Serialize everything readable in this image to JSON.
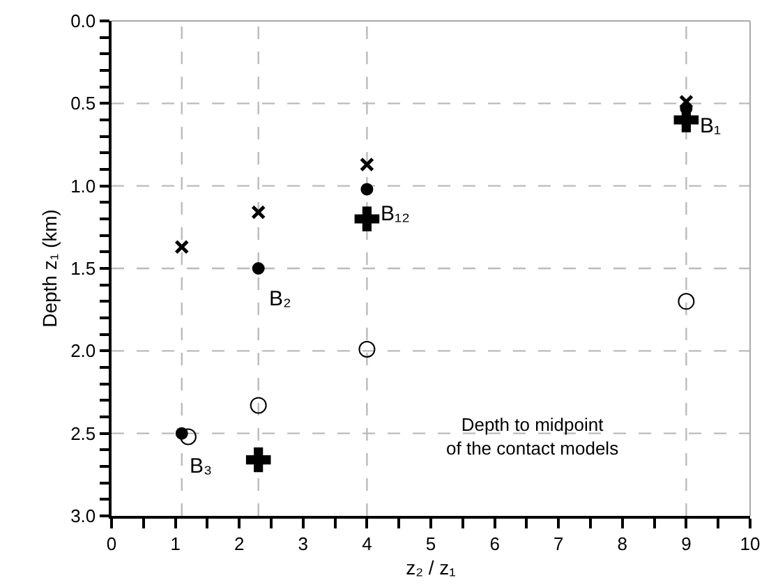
{
  "chart_data": {
    "type": "scatter",
    "xlabel": "z₂ / z₁",
    "ylabel": "Depth z₁ (km)",
    "xlim": [
      0,
      10
    ],
    "ylim": [
      3.0,
      0.0
    ],
    "xticks": [
      0,
      {
        "value": 0.5,
        "label": null
      },
      1,
      {
        "value": 1.5,
        "label": null
      },
      2,
      {
        "value": 2.5,
        "label": null
      },
      3,
      {
        "value": 3.5,
        "label": null
      },
      4,
      {
        "value": 4.5,
        "label": null
      },
      5,
      {
        "value": 5.5,
        "label": null
      },
      6,
      {
        "value": 6.5,
        "label": null
      },
      7,
      {
        "value": 7.5,
        "label": null
      },
      8,
      {
        "value": 8.5,
        "label": null
      },
      9,
      {
        "value": 9.5,
        "label": null
      },
      10
    ],
    "yticks": [
      {
        "value": 0,
        "label": "0.0"
      },
      {
        "value": 0.1,
        "label": null
      },
      {
        "value": 0.2,
        "label": null
      },
      {
        "value": 0.3,
        "label": null
      },
      {
        "value": 0.4,
        "label": null
      },
      0.5,
      {
        "value": 0.6,
        "label": null
      },
      {
        "value": 0.7,
        "label": null
      },
      {
        "value": 0.8,
        "label": null
      },
      {
        "value": 0.9,
        "label": null
      },
      {
        "value": 1.0,
        "label": "1.0"
      },
      {
        "value": 1.1,
        "label": null
      },
      {
        "value": 1.2,
        "label": null
      },
      {
        "value": 1.3,
        "label": null
      },
      {
        "value": 1.4,
        "label": null
      },
      1.5,
      {
        "value": 1.6,
        "label": null
      },
      {
        "value": 1.7,
        "label": null
      },
      {
        "value": 1.8,
        "label": null
      },
      {
        "value": 1.9,
        "label": null
      },
      {
        "value": 2.0,
        "label": "2.0"
      },
      {
        "value": 2.1,
        "label": null
      },
      {
        "value": 2.2,
        "label": null
      },
      {
        "value": 2.3,
        "label": null
      },
      {
        "value": 2.4,
        "label": null
      },
      2.5,
      {
        "value": 2.6,
        "label": null
      },
      {
        "value": 2.7,
        "label": null
      },
      {
        "value": 2.8,
        "label": null
      },
      {
        "value": 2.9,
        "label": null
      },
      {
        "value": 3.0,
        "label": "3.0"
      }
    ],
    "grid": false,
    "series": [
      {
        "marker": "x",
        "color": "#000000",
        "x": [
          1.1,
          2.3,
          4.0,
          9.0
        ],
        "values": [
          1.37,
          1.16,
          0.87,
          0.49
        ]
      },
      {
        "marker": "circle",
        "color": "#000000",
        "x": [
          1.1,
          2.3,
          4.0,
          9.0
        ],
        "values": [
          2.5,
          1.5,
          1.02,
          0.53
        ]
      },
      {
        "marker": "cross",
        "color": "#000000",
        "x": [
          2.3,
          4.0,
          9.0
        ],
        "values": [
          2.66,
          1.2,
          0.6
        ]
      },
      {
        "marker": "circle-open",
        "color": "#000000",
        "x": [
          1.2,
          2.3,
          4.0,
          9.0
        ],
        "values": [
          2.52,
          2.33,
          1.99,
          1.7
        ]
      }
    ],
    "ref_lines": [
      {
        "axis": "x",
        "value": 1.1,
        "color": "#bbbbbb",
        "line_style": "dashed"
      },
      {
        "axis": "x",
        "value": 2.3,
        "color": "#bbbbbb",
        "line_style": "dashed"
      },
      {
        "axis": "x",
        "value": 4.0,
        "color": "#bbbbbb",
        "line_style": "dashed"
      },
      {
        "axis": "x",
        "value": 9.0,
        "color": "#bbbbbb",
        "line_style": "dashed"
      },
      {
        "axis": "y",
        "value": 0.5,
        "color": "#bbbbbb",
        "line_style": "dashed"
      },
      {
        "axis": "y",
        "value": 1.0,
        "color": "#bbbbbb",
        "line_style": "dashed"
      },
      {
        "axis": "y",
        "value": 1.5,
        "color": "#bbbbbb",
        "line_style": "dashed"
      },
      {
        "axis": "y",
        "value": 2.0,
        "color": "#bbbbbb",
        "line_style": "dashed"
      },
      {
        "axis": "y",
        "value": 2.5,
        "color": "#bbbbbb",
        "line_style": "dashed"
      }
    ],
    "annotations": [
      {
        "text": "B₁",
        "x": 9.0,
        "y": 0.6
      },
      {
        "text": "B₁₂",
        "x": 4.0,
        "y": 1.2
      },
      {
        "text": "B₂",
        "x": 2.3,
        "y": 1.5
      },
      {
        "text": "B₃",
        "x": 1.1,
        "y": 2.5
      },
      "Depth to midpoint\nof the contact models"
    ]
  }
}
